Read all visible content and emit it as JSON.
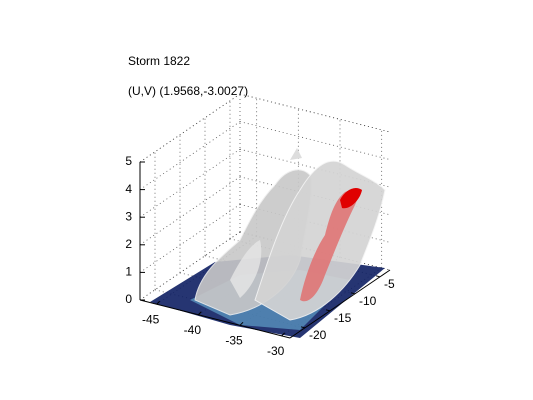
{
  "chart_data": {
    "type": "isosurface",
    "title": "Storm 1822",
    "subtitle": "(U,V) (1.9568,-3.0027)",
    "xlim": [
      -47,
      -29
    ],
    "xticks": [
      -45,
      -40,
      -35,
      -30
    ],
    "ylim": [
      -23,
      -3
    ],
    "yticks": [
      -20,
      -15,
      -10,
      -5
    ],
    "zlim": [
      0,
      5
    ],
    "zticks": [
      0,
      1,
      2,
      3,
      4,
      5
    ],
    "grid": true
  }
}
